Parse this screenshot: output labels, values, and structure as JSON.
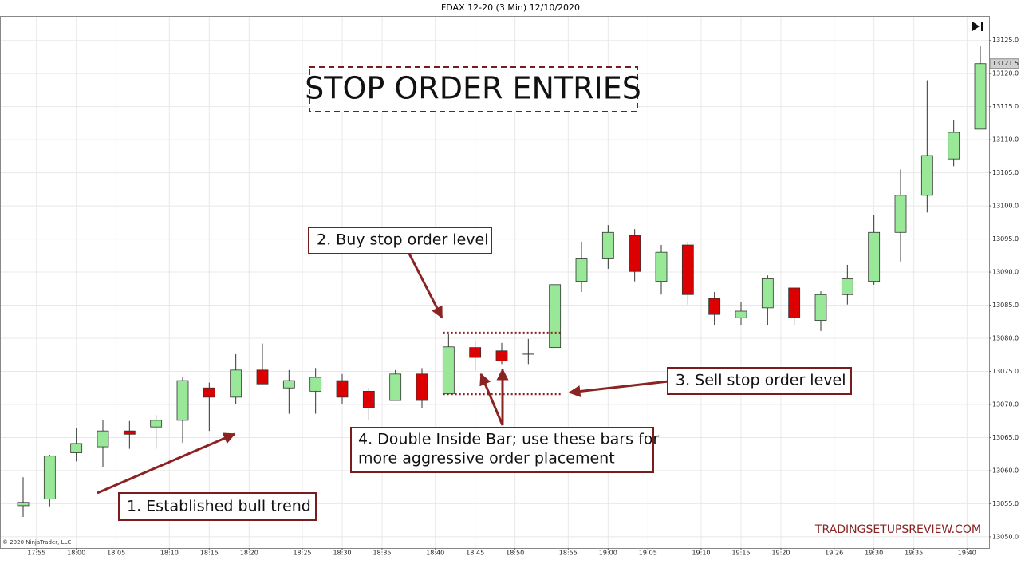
{
  "header": "FDAX 12-20 (3 Min)  12/10/2020",
  "copyright": "© 2020 NinjaTrader, LLC",
  "watermark": "TRADINGSETUPSREVIEW.COM",
  "chart_data": {
    "type": "candlestick",
    "title": "STOP ORDER ENTRIES",
    "up_color": "#98e898",
    "down_color": "#dd0000",
    "grid": true,
    "xlim": [
      -0.87,
      36.33
    ],
    "ylim": [
      13048.3,
      13128.7
    ],
    "xticks": [
      {
        "value": 0.5,
        "label": "17:55"
      },
      {
        "value": 2,
        "label": "18:00"
      },
      {
        "value": 3.5,
        "label": "18:05"
      },
      {
        "value": 5.5,
        "label": "18:10"
      },
      {
        "value": 7,
        "label": "18:15"
      },
      {
        "value": 8.5,
        "label": "18:20"
      },
      {
        "value": 10.5,
        "label": "18:25"
      },
      {
        "value": 12,
        "label": "18:30"
      },
      {
        "value": 13.5,
        "label": "18:35"
      },
      {
        "value": 15.5,
        "label": "18:40"
      },
      {
        "value": 17,
        "label": "18:45"
      },
      {
        "value": 18.5,
        "label": "18:50"
      },
      {
        "value": 20.5,
        "label": "18:55"
      },
      {
        "value": 22,
        "label": "19:00"
      },
      {
        "value": 23.5,
        "label": "19:05"
      },
      {
        "value": 25.5,
        "label": "19:10"
      },
      {
        "value": 27,
        "label": "19:15"
      },
      {
        "value": 28.5,
        "label": "19:20"
      },
      {
        "value": 30.5,
        "label": "19:26"
      },
      {
        "value": 32,
        "label": "19:30"
      },
      {
        "value": 33.5,
        "label": "19:35"
      },
      {
        "value": 35.5,
        "label": "19:40"
      }
    ],
    "yticks": [
      {
        "value": 13050,
        "label": "13050.0"
      },
      {
        "value": 13055,
        "label": "13055.0"
      },
      {
        "value": 13060,
        "label": "13060.0"
      },
      {
        "value": 13065,
        "label": "13065.0"
      },
      {
        "value": 13070,
        "label": "13070.0"
      },
      {
        "value": 13075,
        "label": "13075.0"
      },
      {
        "value": 13080,
        "label": "13080.0"
      },
      {
        "value": 13085,
        "label": "13085.0"
      },
      {
        "value": 13090,
        "label": "13090.0"
      },
      {
        "value": 13095,
        "label": "13095.0"
      },
      {
        "value": 13100,
        "label": "13100.0"
      },
      {
        "value": 13105,
        "label": "13105.0"
      },
      {
        "value": 13110,
        "label": "13110.0"
      },
      {
        "value": 13115,
        "label": "13115.0"
      },
      {
        "value": 13120,
        "label": "13120.0"
      },
      {
        "value": 13125,
        "label": "13125.0"
      }
    ],
    "open": [
      13054.7,
      13055.7,
      13062.7,
      13063.6,
      13066.0,
      13066.6,
      13067.6,
      13072.5,
      13071.1,
      13075.2,
      13072.5,
      13072.0,
      13073.6,
      13072.0,
      13070.6,
      13074.6,
      13071.6,
      13078.6,
      13078.1,
      13077.6,
      13078.6,
      13088.6,
      13092.0,
      13095.5,
      13088.6,
      13094.1,
      13086.0,
      13083.1,
      13084.6,
      13087.6,
      13082.7,
      13086.6,
      13088.6,
      13096.0,
      13101.6,
      13107.1,
      13111.6
    ],
    "high": [
      13059.0,
      13062.4,
      13066.5,
      13067.7,
      13067.5,
      13068.4,
      13074.2,
      13073.3,
      13077.6,
      13079.2,
      13075.2,
      13075.5,
      13074.6,
      13072.5,
      13075.2,
      13075.5,
      13080.6,
      13079.5,
      13079.3,
      13079.9,
      13088.1,
      13094.6,
      13097.1,
      13096.5,
      13094.1,
      13094.6,
      13087.0,
      13085.5,
      13089.5,
      13087.6,
      13087.1,
      13091.1,
      13098.6,
      13105.5,
      13119.0,
      13113.0,
      13124.1
    ],
    "low": [
      13053.0,
      13054.6,
      13061.4,
      13060.5,
      13063.3,
      13063.3,
      13064.2,
      13066.0,
      13070.1,
      13073.1,
      13068.6,
      13068.6,
      13070.1,
      13067.6,
      13070.6,
      13069.5,
      13071.6,
      13075.1,
      13076.1,
      13076.1,
      13078.6,
      13087.0,
      13090.5,
      13088.6,
      13086.6,
      13085.1,
      13082.0,
      13082.0,
      13082.0,
      13082.0,
      13081.1,
      13085.1,
      13088.1,
      13091.6,
      13099.0,
      13106.0,
      13111.6
    ],
    "close": [
      13055.2,
      13062.2,
      13064.1,
      13066.0,
      13065.5,
      13067.6,
      13073.6,
      13071.1,
      13075.2,
      13073.1,
      13073.6,
      13074.1,
      13071.1,
      13069.5,
      13074.6,
      13070.6,
      13078.7,
      13077.1,
      13076.6,
      13077.6,
      13088.1,
      13092.0,
      13096.0,
      13090.1,
      13093.0,
      13086.6,
      13083.6,
      13084.1,
      13089.0,
      13083.1,
      13086.6,
      13089.0,
      13096.0,
      13101.6,
      13107.6,
      13111.1,
      13121.5
    ],
    "last_price": 13121.5,
    "buy_stop_level": 13080.8,
    "sell_stop_level": 13071.6,
    "annotations": {
      "trend": "1. Established bull trend",
      "buy_stop": "2. Buy stop order level",
      "sell_stop": "3. Sell stop order level",
      "inside_bar": [
        "4. Double Inside Bar; use these bars for",
        "more aggressive order placement"
      ]
    }
  }
}
